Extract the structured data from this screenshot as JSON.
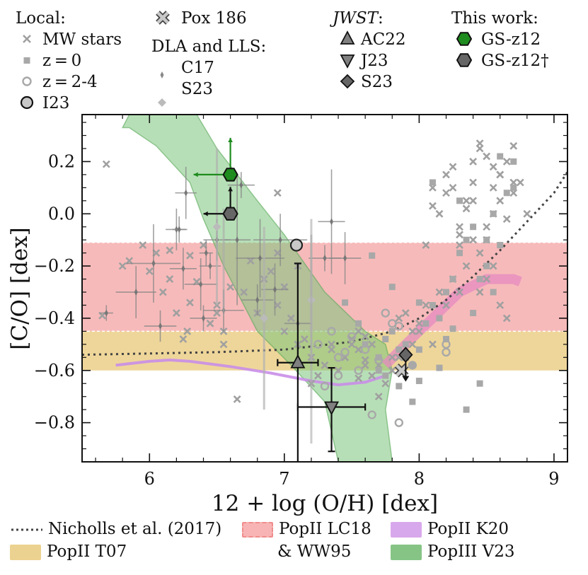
{
  "chart_data": {
    "type": "scatter",
    "xlabel": "12 + log (O/H) [dex]",
    "ylabel": "[C/O] [dex]",
    "xlim": [
      5.5,
      9.1
    ],
    "ylim": [
      -0.95,
      0.38
    ],
    "xticks": [
      6,
      7,
      8,
      9
    ],
    "yticks": [
      0.2,
      0.0,
      -0.2,
      -0.4,
      -0.6,
      -0.8
    ],
    "ytick_labels": [
      "0.2",
      "0.0",
      "−0.2",
      "−0.4",
      "−0.6",
      "−0.8"
    ],
    "bands": [
      {
        "name": "PopII LC18 & WW95",
        "ymin": -0.45,
        "ymax": -0.11,
        "color": "#f4a3a3"
      },
      {
        "name": "PopII T07",
        "ymin": -0.6,
        "ymax": -0.45,
        "color": "#e8c878"
      }
    ],
    "popIII_V23_polygon": [
      [
        5.8,
        0.33
      ],
      [
        5.85,
        0.38
      ],
      [
        6.35,
        0.38
      ],
      [
        6.5,
        0.25
      ],
      [
        6.8,
        0.05
      ],
      [
        7.0,
        -0.08
      ],
      [
        7.3,
        -0.3
      ],
      [
        7.6,
        -0.45
      ],
      [
        7.75,
        -0.5
      ],
      [
        7.8,
        -0.6
      ],
      [
        7.75,
        -0.75
      ],
      [
        7.8,
        -0.95
      ],
      [
        7.4,
        -0.95
      ],
      [
        7.3,
        -0.72
      ],
      [
        7.05,
        -0.58
      ],
      [
        6.8,
        -0.45
      ],
      [
        6.55,
        -0.2
      ],
      [
        6.4,
        -0.02
      ],
      [
        6.3,
        0.12
      ],
      [
        6.05,
        0.26
      ],
      [
        5.85,
        0.33
      ]
    ],
    "k20_line": {
      "x": [
        5.75,
        6.0,
        6.15,
        6.3,
        6.6,
        6.9,
        7.2,
        7.4,
        7.6,
        7.75
      ],
      "y": [
        -0.58,
        -0.565,
        -0.56,
        -0.565,
        -0.585,
        -0.61,
        -0.64,
        -0.655,
        -0.645,
        -0.62
      ],
      "color": "#c98ee8"
    },
    "pink_curve": {
      "x": [
        7.75,
        7.9,
        8.1,
        8.3,
        8.5,
        8.7,
        8.75
      ],
      "y": [
        -0.58,
        -0.5,
        -0.4,
        -0.3,
        -0.25,
        -0.25,
        -0.26
      ],
      "color": "#e58ac0"
    },
    "nicholls_curve": {
      "x": [
        5.5,
        6.0,
        6.5,
        7.0,
        7.5,
        7.8,
        8.0,
        8.2,
        8.4,
        8.6,
        8.8,
        9.0,
        9.1
      ],
      "y": [
        -0.54,
        -0.535,
        -0.53,
        -0.52,
        -0.49,
        -0.45,
        -0.4,
        -0.33,
        -0.24,
        -0.14,
        -0.03,
        0.08,
        0.16
      ]
    },
    "mw_stars": {
      "x": [
        5.68,
        5.65,
        5.8,
        5.95,
        6.15,
        6.3,
        6.35,
        6.28,
        6.45,
        6.5,
        6.3,
        6.55,
        6.6,
        6.7,
        6.8,
        6.85,
        6.9,
        6.95,
        7.0,
        7.05,
        7.1,
        7.15,
        7.2,
        7.25,
        7.3,
        7.35,
        7.4,
        7.45,
        7.5,
        7.55,
        7.6,
        7.1,
        7.2,
        6.95,
        6.75,
        6.65,
        6.55,
        6.4,
        6.5,
        6.25,
        6.2,
        6.1,
        5.85,
        6.0,
        7.0,
        7.35,
        7.45,
        7.55,
        7.65,
        7.7,
        7.8,
        7.85,
        7.9,
        7.95,
        8.0,
        8.05,
        8.1,
        8.15,
        8.2,
        8.25,
        8.3,
        8.35,
        8.4,
        8.45,
        8.5,
        8.55,
        8.6,
        8.65,
        8.7,
        8.75,
        8.8,
        8.05,
        8.1,
        8.2,
        8.3,
        8.35,
        8.4,
        8.45,
        8.5,
        8.55,
        8.6,
        8.65,
        8.7,
        8.45,
        8.5,
        8.55,
        8.6,
        8.65,
        8.35,
        8.4,
        8.3,
        8.25,
        8.2,
        8.15,
        8.1,
        8.0,
        7.95,
        7.9,
        7.85,
        7.8,
        7.75,
        7.7,
        7.65,
        7.6,
        7.55,
        7.5,
        6.15,
        6.05,
        7.6,
        6.95,
        8.25,
        8.45,
        8.55,
        8.4,
        8.6,
        8.5,
        8.7,
        8.3
      ],
      "y": [
        0.19,
        -0.39,
        -0.2,
        -0.12,
        -0.14,
        -0.16,
        -0.26,
        -0.45,
        -0.42,
        -0.38,
        -0.34,
        -0.5,
        -0.28,
        -0.3,
        -0.38,
        -0.25,
        -0.22,
        -0.35,
        -0.45,
        -0.4,
        -0.5,
        -0.48,
        -0.55,
        -0.62,
        -0.58,
        -0.52,
        -0.6,
        -0.55,
        -0.5,
        -0.63,
        -0.56,
        -0.2,
        -0.65,
        -0.15,
        -0.18,
        -0.71,
        -0.45,
        -0.12,
        -0.35,
        -0.48,
        -0.38,
        -0.3,
        -0.18,
        -0.22,
        -0.28,
        -0.5,
        -0.55,
        -0.45,
        -0.5,
        -0.58,
        -0.55,
        -0.4,
        -0.38,
        -0.45,
        -0.42,
        -0.35,
        -0.5,
        -0.3,
        -0.35,
        -0.25,
        -0.3,
        -0.2,
        -0.1,
        -0.15,
        -0.05,
        0.0,
        0.05,
        -0.02,
        0.08,
        0.12,
        0.0,
        -0.12,
        0.1,
        0.15,
        -0.05,
        0.02,
        0.2,
        0.25,
        0.22,
        0.1,
        0.15,
        0.2,
        0.26,
        -0.3,
        -0.25,
        -0.2,
        -0.35,
        -0.4,
        0.05,
        0.12,
        -0.08,
        0.1,
        0.08,
        0.0,
        0.03,
        -0.45,
        -0.5,
        -0.55,
        -0.55,
        -0.6,
        -0.65,
        -0.7,
        -0.62,
        -0.58,
        -0.52,
        -0.48,
        -0.25,
        -0.15,
        -0.47,
        0.08,
        0.18,
        0.27,
        0.18,
        0.05,
        0.15,
        -0.1,
        0.12,
        -0.12
      ]
    },
    "z0": {
      "x": [
        7.45,
        7.55,
        7.6,
        7.7,
        7.75,
        7.8,
        7.85,
        7.9,
        7.95,
        8.0,
        8.05,
        8.1,
        8.15,
        8.2,
        8.25,
        8.3,
        8.35,
        8.4,
        8.45,
        8.5,
        8.55,
        8.6,
        8.65,
        8.7,
        7.8,
        7.65,
        8.0,
        8.15,
        8.35,
        8.45,
        8.6,
        8.7,
        8.1,
        8.3,
        8.5,
        8.55,
        8.2,
        7.95,
        7.85,
        7.75,
        8.0,
        8.4,
        8.25,
        7.7
      ],
      "y": [
        -0.34,
        -0.42,
        -0.5,
        -0.55,
        -0.48,
        -0.45,
        -0.52,
        -0.5,
        -0.58,
        -0.52,
        -0.42,
        -0.35,
        -0.4,
        -0.3,
        -0.25,
        -0.15,
        -0.1,
        -0.05,
        -0.25,
        -0.2,
        -0.3,
        -0.12,
        0.08,
        0.1,
        -0.28,
        -0.16,
        -0.64,
        -0.59,
        -0.75,
        -0.65,
        0.22,
        0.2,
        0.12,
        0.05,
        -0.1,
        0.0,
        -0.48,
        -0.72,
        -0.66,
        -0.62,
        -0.34,
        -0.38,
        -0.44,
        -0.6
      ]
    },
    "z24": {
      "x": [
        7.25,
        7.35,
        7.4,
        7.45,
        7.5,
        7.6,
        7.7,
        7.75,
        7.8,
        7.65,
        7.55,
        7.4,
        7.85,
        7.85,
        7.3,
        8.2,
        8.2,
        7.95
      ],
      "y": [
        -0.5,
        -0.45,
        -0.55,
        -0.53,
        -0.47,
        -0.52,
        -0.56,
        -0.38,
        -0.42,
        -0.77,
        -0.6,
        -0.62,
        -0.8,
        -0.43,
        -0.66,
        -0.53,
        -0.5,
        -0.58
      ]
    },
    "I23": {
      "x": [
        7.09
      ],
      "y": [
        -0.12
      ]
    },
    "Pox186": {
      "x": [
        7.87
      ],
      "y": [
        -0.6
      ]
    },
    "DLA_C17": {
      "x": [
        5.68,
        5.9,
        6.03,
        6.08,
        6.25,
        6.27,
        6.38,
        6.55,
        6.68,
        6.8,
        6.82,
        6.93,
        6.97,
        7.1,
        7.3,
        7.35,
        7.45,
        6.5,
        6.45,
        6.42,
        6.2,
        6.22,
        6.4,
        6.65
      ],
      "y": [
        -0.38,
        -0.3,
        -0.19,
        -0.43,
        -0.21,
        0.08,
        -0.27,
        -0.37,
        0.11,
        -0.33,
        -0.17,
        -0.29,
        -0.1,
        -0.42,
        -0.17,
        -0.03,
        -0.17,
        -0.1,
        -0.2,
        -0.15,
        -0.06,
        -0.06,
        -0.4,
        -0.1
      ],
      "xerr": [
        0.05,
        0.15,
        0.2,
        0.12,
        0.1,
        0.08,
        0.12,
        0.15,
        0.1,
        0.12,
        0.18,
        0.1,
        0.2,
        0.1,
        0.12,
        0.1,
        0.12,
        0.1,
        0.08,
        0.05,
        0.08,
        0.05,
        0.1,
        0.1
      ],
      "yerr": [
        0.03,
        0.1,
        0.15,
        0.06,
        0.08,
        0.1,
        0.1,
        0.08,
        0.05,
        0.06,
        0.15,
        0.1,
        0.1,
        0.05,
        0.05,
        0.2,
        0.1,
        0.08,
        0.05,
        0.05,
        0.08,
        0.05,
        0.05,
        0.25
      ]
    },
    "DLA_S23": {
      "x": [
        6.5,
        6.85,
        7.2
      ],
      "y": [
        -0.05,
        -0.4,
        -0.33
      ],
      "yerr": [
        0.3,
        0.35,
        0.25
      ]
    },
    "JWST_AC22": {
      "x": 7.1,
      "y": -0.57,
      "xerr": 0.15,
      "ylow": -0.95,
      "yhigh": -0.19
    },
    "JWST_J23": {
      "x": 7.35,
      "y": -0.74,
      "xerr": 0.25,
      "ylow": -0.91,
      "yhigh": -0.59
    },
    "JWST_S23": {
      "x": 7.9,
      "y": -0.54,
      "upper": true
    },
    "GS_z12": {
      "x": 6.6,
      "y": 0.15,
      "color": "#1e8c1e"
    },
    "GS_z12_dagger": {
      "x": 6.6,
      "y": 0.0,
      "color": "#666666"
    }
  },
  "legend": {
    "local_title": "Local:",
    "mw_stars": "MW stars",
    "z0": "z = 0",
    "z24": "z = 2-4",
    "i23": "I23",
    "pox186": "Pox 186",
    "dla_title": "DLA and LLS:",
    "c17": "C17",
    "s23_dla": "S23",
    "jwst_title": "JWST",
    "jwst_colon": ":",
    "ac22": "AC22",
    "j23": "J23",
    "s23": "S23",
    "thiswork_title": "This work:",
    "gs_z12": "GS-z12",
    "gs_z12_dagger": "GS-z12†"
  },
  "bottom_legend": {
    "nicholls": "Nicholls et al. (2017)",
    "lc18_line1": "PopII LC18",
    "lc18_line2": "& WW95",
    "k20": "PopII K20",
    "t07": "PopII T07",
    "v23": "PopIII V23"
  },
  "colors": {
    "popIII": "#7cc47c",
    "k20": "#d8a8ec",
    "lc18": "#f8b4b4",
    "t07": "#ecd290",
    "gs_z12": "#1e8c1e",
    "gray": "#9a9a9a"
  }
}
